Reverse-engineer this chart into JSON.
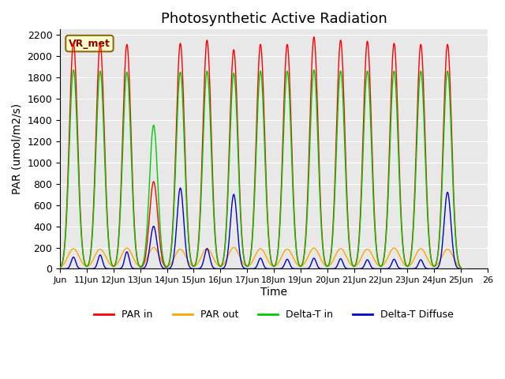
{
  "title": "Photosynthetic Active Radiation",
  "ylabel": "PAR (umol/m2/s)",
  "xlabel": "Time",
  "annotation": "VR_met",
  "ylim": [
    0,
    2250
  ],
  "yticks": [
    0,
    200,
    400,
    600,
    800,
    1000,
    1200,
    1400,
    1600,
    1800,
    2000,
    2200
  ],
  "x_start": 10.0,
  "x_end": 26.0,
  "xtick_positions": [
    10,
    11,
    12,
    13,
    14,
    15,
    16,
    17,
    18,
    19,
    20,
    21,
    22,
    23,
    24,
    25,
    26
  ],
  "xtick_labels": [
    "Jun",
    "11Jun",
    "12Jun",
    "13Jun",
    "14Jun",
    "15Jun",
    "16Jun",
    "17Jun",
    "18Jun",
    "19Jun",
    "20Jun",
    "21Jun",
    "22Jun",
    "23Jun",
    "24Jun",
    "25Jun",
    "26"
  ],
  "colors": {
    "PAR_in": "#ff0000",
    "PAR_out": "#ffa500",
    "Delta_T_in": "#00cc00",
    "Delta_T_diffuse": "#0000cc"
  },
  "legend_labels": [
    "PAR in",
    "PAR out",
    "Delta-T in",
    "Delta-T Diffuse"
  ],
  "bg_color": "#e8e8e8",
  "grid_color": "#ffffff",
  "title_fontsize": 13,
  "label_fontsize": 10
}
